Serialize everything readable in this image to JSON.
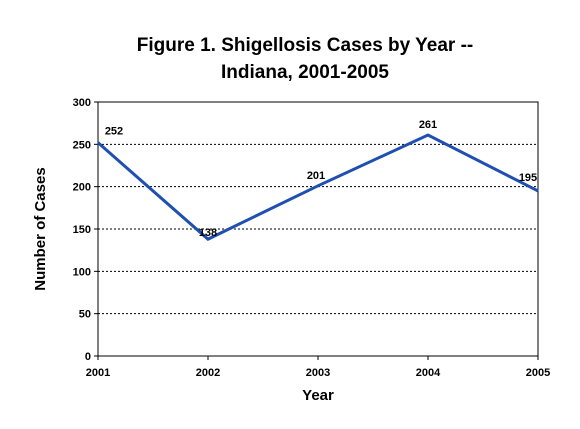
{
  "chart_data": {
    "type": "line",
    "title_line1": "Figure 1.  Shigellosis Cases by Year --",
    "title_line2": "Indiana, 2001-2005",
    "xlabel": "Year",
    "ylabel": "Number of Cases",
    "categories": [
      "2001",
      "2002",
      "2003",
      "2004",
      "2005"
    ],
    "series": [
      {
        "values": [
          252,
          138,
          201,
          261,
          195
        ],
        "color": "#1f4fb0"
      }
    ],
    "data_labels": [
      "252",
      "138",
      "201",
      "261",
      "195"
    ],
    "ylim": [
      0,
      300
    ],
    "yticks": [
      0,
      50,
      100,
      150,
      200,
      250,
      300
    ],
    "grid": "horizontal-dotted",
    "legend": "none"
  }
}
